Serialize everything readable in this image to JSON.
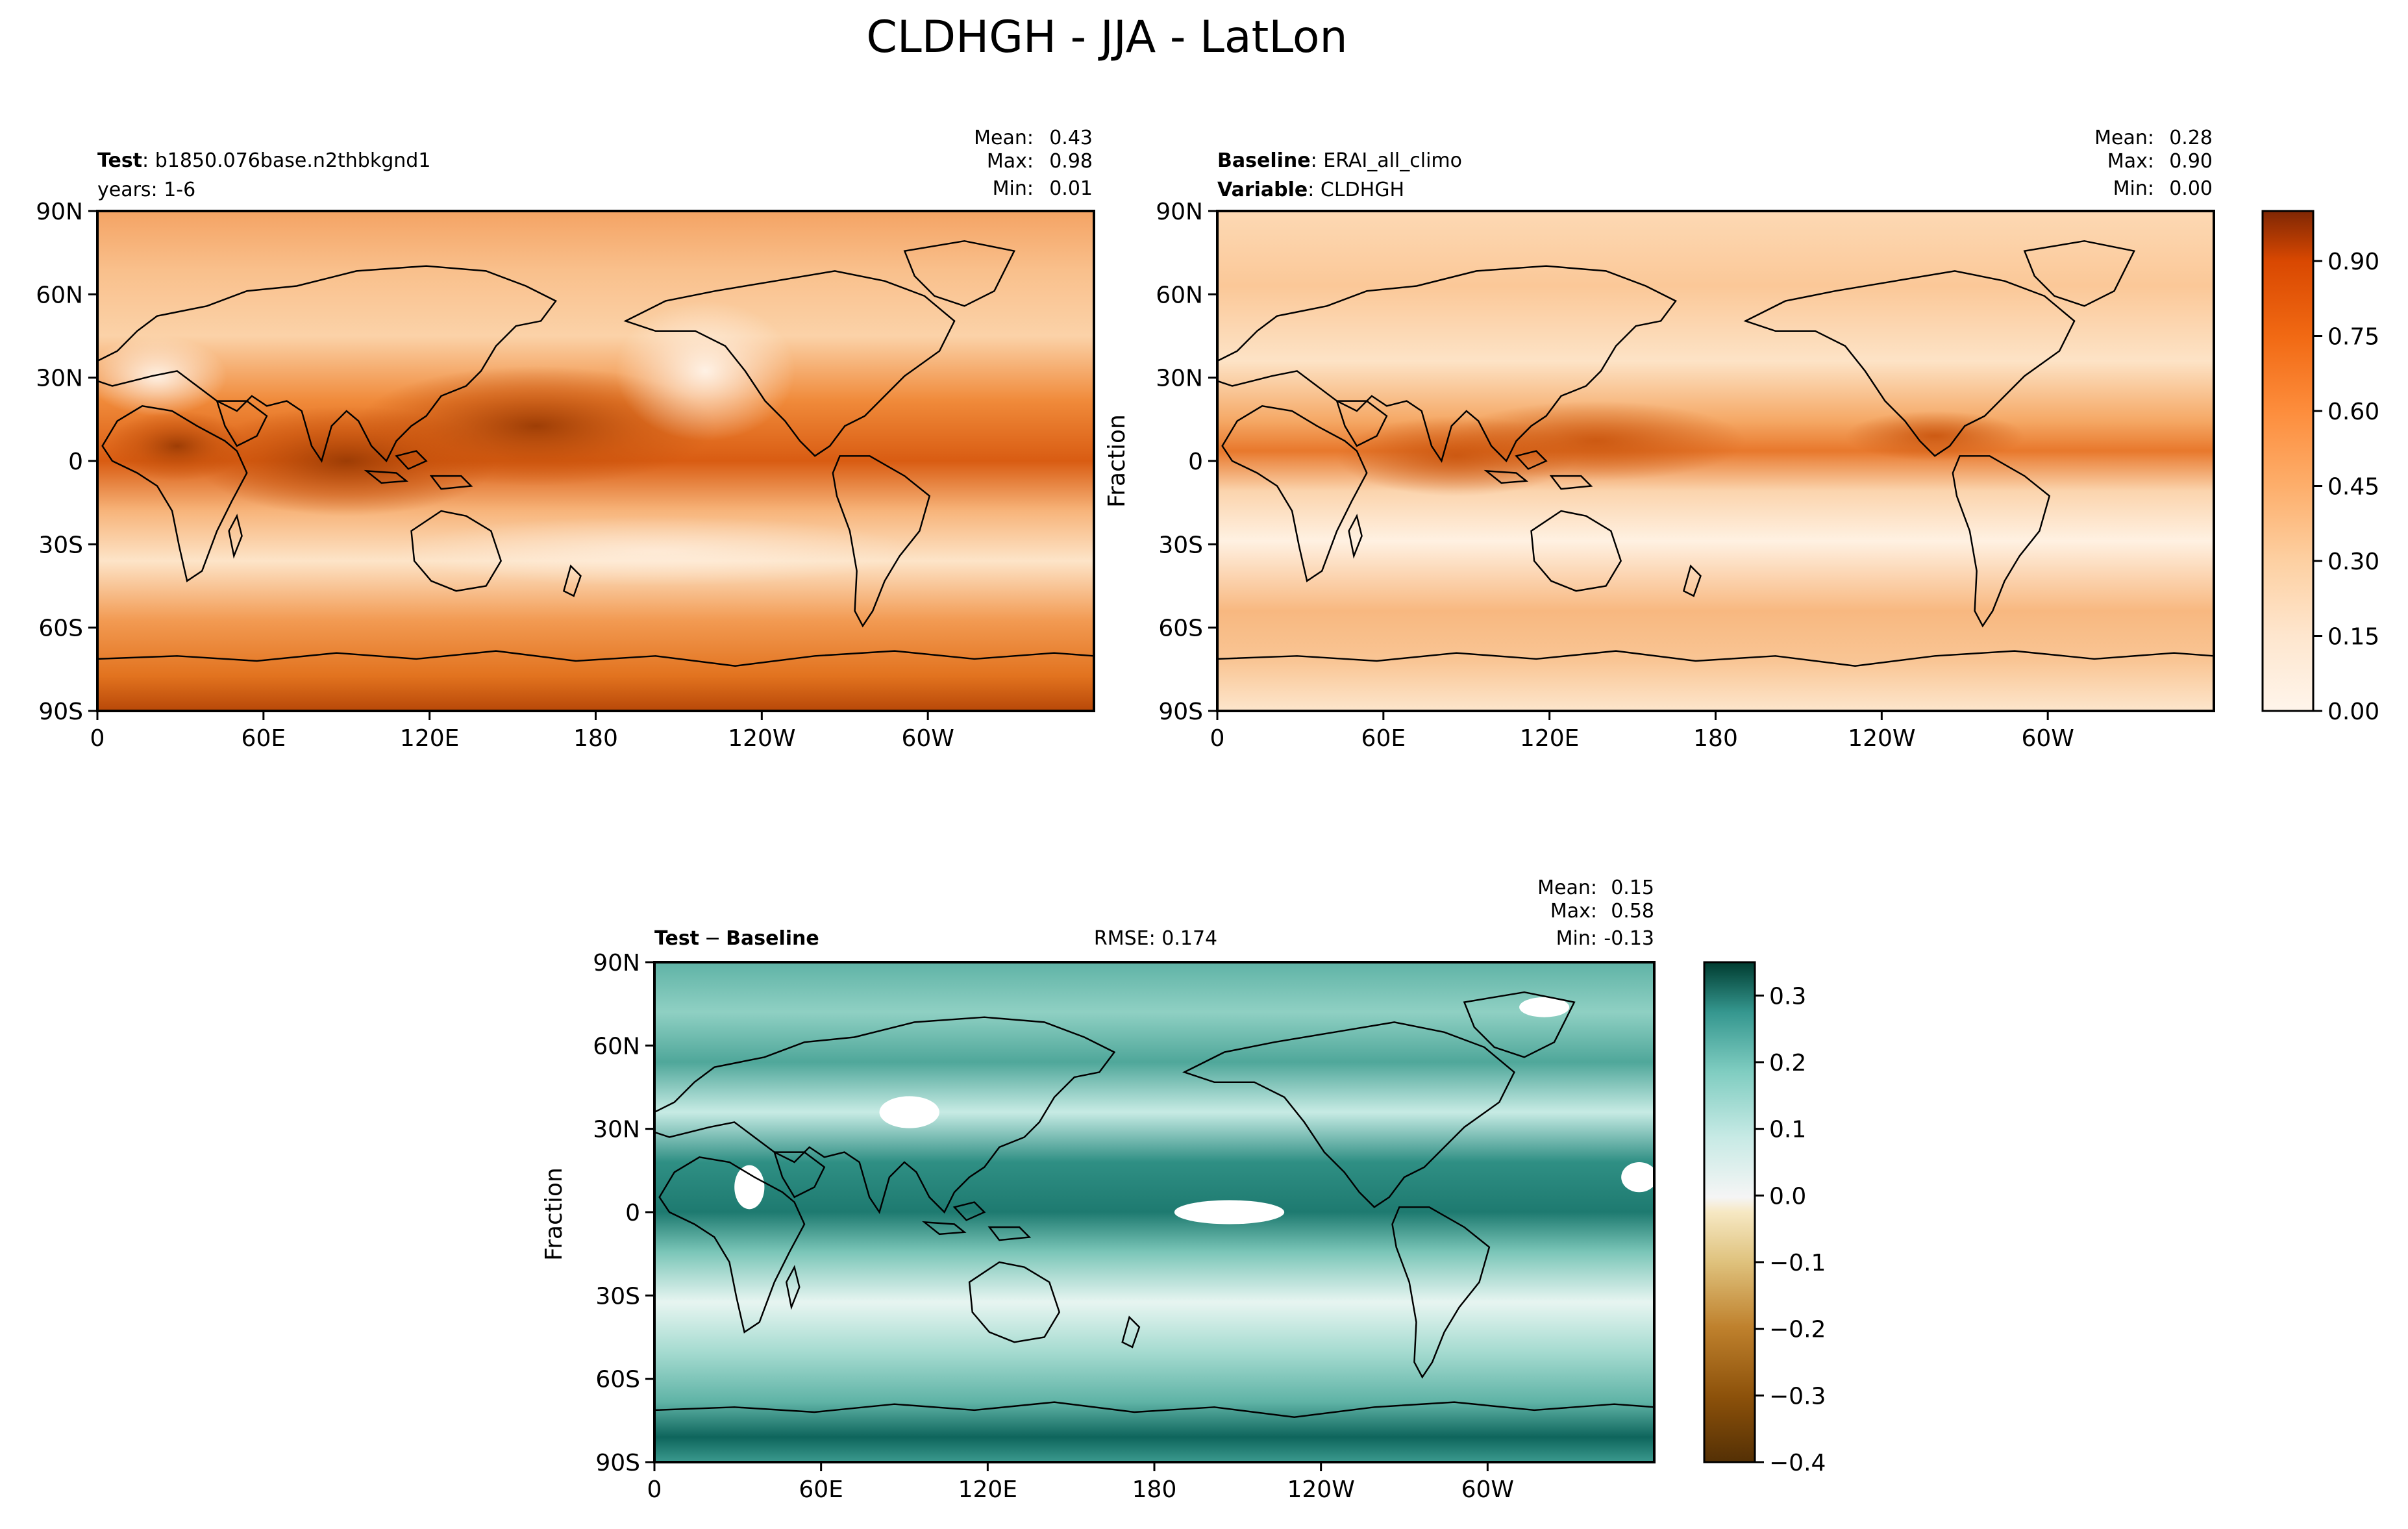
{
  "figure": {
    "title": "CLDHGH - JJA - LatLon"
  },
  "chart_data": [
    {
      "type": "heatmap",
      "panel": "test",
      "header": {
        "label_bold": "Test",
        "label_value": "b1850.076base.n2thbkgnd1",
        "line2": "years: 1-6"
      },
      "stats": {
        "mean_label": "Mean:",
        "mean": "0.43",
        "max_label": "Max:",
        "max": "0.98",
        "min_label": "Min:",
        "min": "0.01"
      },
      "xlabel": "",
      "ylabel": "",
      "xticks": [
        "0",
        "60E",
        "120E",
        "180",
        "120W",
        "60W"
      ],
      "yticks": [
        "90N",
        "60N",
        "30N",
        "0",
        "30S",
        "60S",
        "90S"
      ],
      "xlim": [
        0,
        360
      ],
      "ylim": [
        -90,
        90
      ],
      "colormap": "Oranges",
      "value_range": [
        0.0,
        1.0
      ]
    },
    {
      "type": "heatmap",
      "panel": "baseline",
      "header": {
        "label_bold": "Baseline",
        "label_value": "ERAI_all_climo",
        "line2_bold": "Variable",
        "line2_value": "CLDHGH"
      },
      "stats": {
        "mean_label": "Mean:",
        "mean": "0.28",
        "max_label": "Max:",
        "max": "0.90",
        "min_label": "Min:",
        "min": "0.00"
      },
      "xlabel": "",
      "ylabel": "Fraction",
      "xticks": [
        "0",
        "60E",
        "120E",
        "180",
        "120W",
        "60W"
      ],
      "yticks": [
        "90N",
        "60N",
        "30N",
        "0",
        "30S",
        "60S",
        "90S"
      ],
      "xlim": [
        0,
        360
      ],
      "ylim": [
        -90,
        90
      ],
      "colormap": "Oranges",
      "value_range": [
        0.0,
        1.0
      ],
      "colorbar": {
        "ticks": [
          "0.00",
          "0.15",
          "0.30",
          "0.45",
          "0.60",
          "0.75",
          "0.90"
        ],
        "tick_values": [
          0.0,
          0.15,
          0.3,
          0.45,
          0.6,
          0.75,
          0.9
        ],
        "range": [
          0.0,
          1.0
        ]
      }
    },
    {
      "type": "heatmap",
      "panel": "difference",
      "header": {
        "label_left": "Test",
        "label_op": "−",
        "label_right": "Baseline",
        "center": "RMSE: 0.174"
      },
      "stats": {
        "mean_label": "Mean:",
        "mean": "0.15",
        "max_label": "Max:",
        "max": "0.58",
        "min_label": "Min:",
        "min": "-0.13"
      },
      "xlabel": "",
      "ylabel": "Fraction",
      "xticks": [
        "0",
        "60E",
        "120E",
        "180",
        "120W",
        "60W"
      ],
      "yticks": [
        "90N",
        "60N",
        "30N",
        "0",
        "30S",
        "60S",
        "90S"
      ],
      "xlim": [
        0,
        360
      ],
      "ylim": [
        -90,
        90
      ],
      "colormap": "BrBG",
      "value_range": [
        -0.4,
        0.35
      ],
      "colorbar": {
        "ticks": [
          "0.3",
          "0.2",
          "0.1",
          "0.0",
          "−0.1",
          "−0.2",
          "−0.3",
          "−0.4"
        ],
        "tick_values": [
          0.3,
          0.2,
          0.1,
          0.0,
          -0.1,
          -0.2,
          -0.3,
          -0.4
        ],
        "range": [
          -0.4,
          0.35
        ]
      }
    }
  ]
}
